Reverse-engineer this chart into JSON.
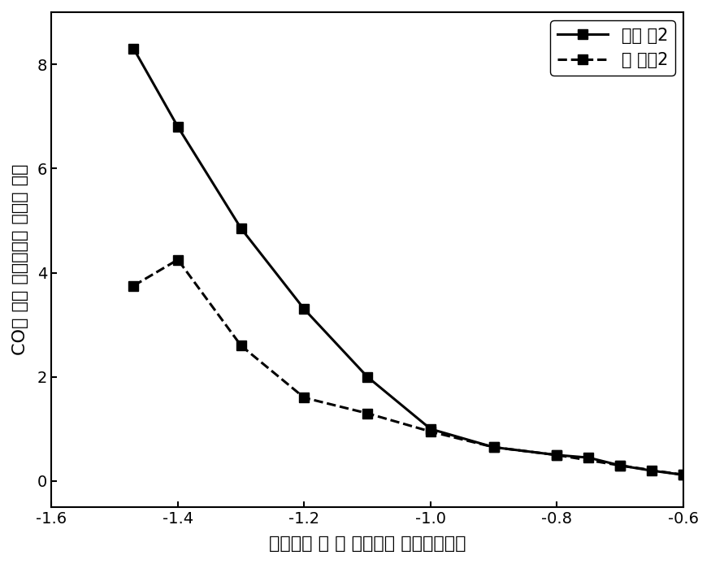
{
  "series1_x": [
    -1.47,
    -1.4,
    -1.3,
    -1.2,
    -1.1,
    -1.0,
    -0.9,
    -0.8,
    -0.75,
    -0.7,
    -0.65,
    -0.6
  ],
  "series1_y": [
    8.3,
    6.8,
    4.85,
    3.3,
    2.0,
    1.0,
    0.65,
    0.5,
    0.45,
    0.3,
    0.2,
    0.12
  ],
  "series2_x": [
    -1.47,
    -1.4,
    -1.3,
    -1.2,
    -1.1,
    -1.0,
    -0.9,
    -0.8,
    -0.7,
    -0.6
  ],
  "series2_y": [
    3.75,
    4.25,
    2.6,
    1.6,
    1.3,
    0.95,
    0.65,
    0.5,
    0.3,
    0.12
  ],
  "xlabel": "电位／伏 特 （ 相对于饱 和甘汞电极）",
  "ylabel": "CO分 电流 密度／毫安 每平方 厘米",
  "legend1": "实施 例2",
  "legend2": "比 较例2",
  "xlim": [
    -1.6,
    -0.6
  ],
  "ylim": [
    -0.5,
    9.0
  ],
  "xticks": [
    -1.6,
    -1.4,
    -1.2,
    -1.0,
    -0.8,
    -0.6
  ],
  "yticks": [
    0,
    2,
    4,
    6,
    8
  ],
  "line_color": "#000000",
  "marker": "s",
  "marker_size": 8,
  "linewidth": 2.2,
  "fontsize_label": 16,
  "fontsize_legend": 15,
  "fontsize_tick": 14,
  "background_color": "#ffffff"
}
